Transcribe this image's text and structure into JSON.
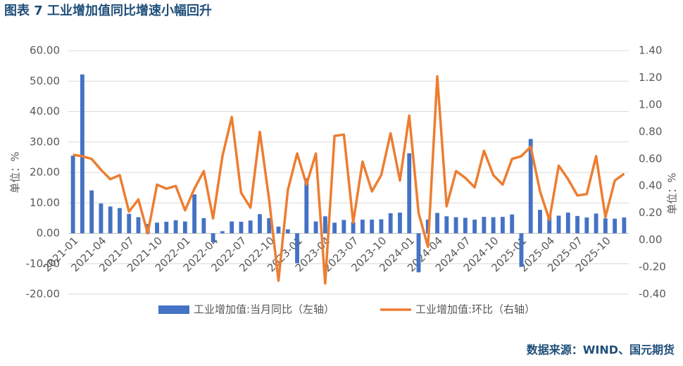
{
  "chart_data": {
    "type": "bar-line",
    "title": "图表 7 工业增加值同比增速小幅回升",
    "source": "数据来源：WIND、国元期货",
    "y_label": "单位：%",
    "y2_label": "单位：%",
    "categories": [
      "2021-01",
      null,
      null,
      "2021-04",
      null,
      null,
      "2021-07",
      null,
      null,
      "2021-10",
      null,
      null,
      "2022-01",
      null,
      null,
      "2022-04",
      null,
      null,
      "2022-07",
      null,
      null,
      "2022-10",
      null,
      null,
      "2023-01",
      null,
      null,
      "2023-04",
      null,
      null,
      "2023-07",
      null,
      null,
      "2023-10",
      null,
      null,
      "2024-01",
      null,
      null,
      "2024-04",
      null,
      null,
      "2024-07",
      null,
      null,
      "2024-10",
      null,
      null,
      "2025-01",
      null,
      null,
      "2025-04",
      null,
      null,
      "2025-07",
      null,
      null,
      "2025-10",
      null,
      null
    ],
    "series": [
      {
        "name": "工业增加值:当月同比（左轴）",
        "type": "bar",
        "color": "#4472c4",
        "values": [
          25.5,
          52.2,
          14.1,
          9.8,
          8.8,
          8.3,
          6.4,
          5.3,
          3.1,
          3.5,
          3.8,
          4.3,
          3.9,
          12.8,
          5.0,
          -2.9,
          0.7,
          3.9,
          3.8,
          4.2,
          6.3,
          5.0,
          2.2,
          1.3,
          -9.8,
          18.1,
          3.9,
          5.6,
          3.5,
          4.4,
          3.7,
          4.5,
          4.5,
          4.6,
          6.6,
          6.8,
          26.3,
          -12.8,
          4.5,
          6.7,
          5.6,
          5.3,
          5.1,
          4.5,
          5.4,
          5.3,
          5.4,
          6.2,
          -11.0,
          31.0,
          7.7,
          6.1,
          5.8,
          6.8,
          5.7,
          5.2,
          6.5,
          4.9,
          4.8,
          5.2
        ]
      },
      {
        "name": "工业增加值:环比（右轴）",
        "type": "line",
        "axis": "y2",
        "color": "#ed7d31",
        "values": [
          0.63,
          0.62,
          0.6,
          0.52,
          0.45,
          0.48,
          0.21,
          0.3,
          0.05,
          0.41,
          0.38,
          0.4,
          0.22,
          0.38,
          0.51,
          0.16,
          0.62,
          0.91,
          0.35,
          0.24,
          0.8,
          0.3,
          -0.3,
          0.37,
          0.64,
          0.41,
          0.64,
          -0.32,
          0.77,
          0.78,
          0.13,
          0.58,
          0.36,
          0.48,
          0.79,
          0.44,
          0.92,
          0.2,
          -0.05,
          1.21,
          0.25,
          0.51,
          0.46,
          0.39,
          0.66,
          0.48,
          0.41,
          0.6,
          0.62,
          0.69,
          0.36,
          0.15,
          0.55,
          0.45,
          0.33,
          0.34,
          0.62,
          0.17,
          0.44,
          0.49
        ]
      }
    ],
    "ylim": [
      -20,
      60
    ],
    "yticks": [
      {
        "value": -20,
        "label": "-20.00"
      },
      {
        "value": -10,
        "label": "-10.00"
      },
      {
        "value": 0,
        "label": "0.00"
      },
      {
        "value": 10,
        "label": "10.00"
      },
      {
        "value": 20,
        "label": "20.00"
      },
      {
        "value": 30,
        "label": "30.00"
      },
      {
        "value": 40,
        "label": "40.00"
      },
      {
        "value": 50,
        "label": "50.00"
      },
      {
        "value": 60,
        "label": "60.00"
      }
    ],
    "y2lim": [
      -0.4,
      1.4
    ],
    "y2ticks": [
      {
        "value": -0.4,
        "label": "-0.40"
      },
      {
        "value": -0.2,
        "label": "-0.20"
      },
      {
        "value": 0,
        "label": "0.00"
      },
      {
        "value": 0.2,
        "label": "0.20"
      },
      {
        "value": 0.4,
        "label": "0.40"
      },
      {
        "value": 0.6,
        "label": "0.60"
      },
      {
        "value": 0.8,
        "label": "0.80"
      },
      {
        "value": 1.0,
        "label": "1.00"
      },
      {
        "value": 1.2,
        "label": "1.20"
      },
      {
        "value": 1.4,
        "label": "1.40"
      }
    ],
    "grid": true,
    "legend": "bottom"
  }
}
